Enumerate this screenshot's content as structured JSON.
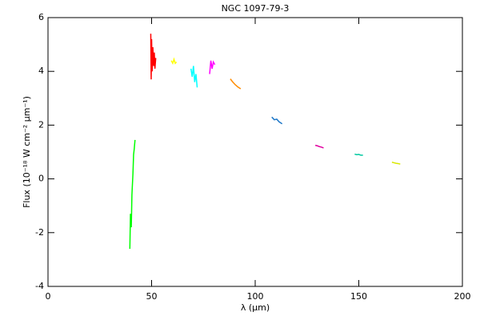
{
  "chart_data": {
    "type": "line",
    "title": "NGC 1097-79-3",
    "x_label": "λ (μm)",
    "y_label": "Flux (10⁻¹⁸ W cm⁻² μm⁻¹)",
    "xlim": [
      0,
      200
    ],
    "xticks": [
      0,
      50,
      100,
      150,
      200
    ],
    "ylim": [
      -4,
      6
    ],
    "yticks": [
      -4,
      -2,
      0,
      2,
      4,
      6
    ],
    "series": [
      {
        "color": "#00ff00",
        "x": [
          39.5,
          39.8,
          40.2,
          40.5,
          41.0,
          41.3,
          41.6,
          42.0
        ],
        "values": [
          -2.6,
          -1.3,
          -1.8,
          -0.6,
          0.2,
          0.9,
          1.1,
          1.45
        ]
      },
      {
        "color": "#ff0000",
        "x": [
          49.6,
          49.8,
          50.0,
          50.3,
          50.6,
          51.0,
          51.3,
          51.6,
          52.0
        ],
        "values": [
          5.4,
          3.7,
          5.2,
          4.0,
          4.9,
          4.2,
          4.7,
          4.1,
          4.5
        ]
      },
      {
        "color": "#ffff00",
        "x": [
          59.5,
          60.2,
          60.8,
          61.4,
          62.0
        ],
        "values": [
          4.4,
          4.3,
          4.45,
          4.3,
          4.35
        ]
      },
      {
        "color": "#00ffff",
        "x": [
          69.0,
          69.6,
          70.2,
          70.8,
          71.4,
          72.0
        ],
        "values": [
          4.1,
          3.8,
          4.2,
          3.6,
          3.9,
          3.4
        ]
      },
      {
        "color": "#ff00ff",
        "x": [
          78.0,
          78.6,
          79.2,
          79.8,
          80.5
        ],
        "values": [
          3.9,
          4.4,
          4.1,
          4.35,
          4.25
        ]
      },
      {
        "color": "#ff8c00",
        "x": [
          88.0,
          89.2,
          90.4,
          91.6,
          93.0
        ],
        "values": [
          3.72,
          3.6,
          3.5,
          3.42,
          3.35
        ]
      },
      {
        "color": "#1e78c8",
        "x": [
          108.0,
          109.2,
          110.4,
          111.6,
          113.0
        ],
        "values": [
          2.3,
          2.2,
          2.22,
          2.12,
          2.05
        ]
      },
      {
        "color": "#e000a0",
        "x": [
          129.0,
          130.0,
          131.0,
          132.0,
          133.0
        ],
        "values": [
          1.25,
          1.23,
          1.2,
          1.18,
          1.15
        ]
      },
      {
        "color": "#00c8a0",
        "x": [
          148.0,
          149.0,
          150.0,
          151.0,
          152.0
        ],
        "values": [
          0.92,
          0.9,
          0.91,
          0.88,
          0.88
        ]
      },
      {
        "color": "#d8e800",
        "x": [
          166.0,
          167.0,
          168.0,
          169.0,
          170.0
        ],
        "values": [
          0.62,
          0.6,
          0.58,
          0.57,
          0.55
        ]
      }
    ]
  }
}
